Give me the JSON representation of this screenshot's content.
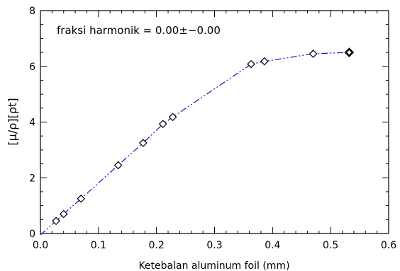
{
  "chart_data": {
    "type": "line",
    "xlabel": "Ketebalan aluminum foil (mm)",
    "ylabel": "[μ/ρ][ρt]",
    "annotation": "fraksi harmonik = 0.00±−0.00",
    "xlim": [
      0.0,
      0.6
    ],
    "ylim": [
      0,
      8
    ],
    "xticks": [
      "0.0",
      "0.1",
      "0.2",
      "0.3",
      "0.4",
      "0.5",
      "0.6"
    ],
    "yticks": [
      "0",
      "2",
      "4",
      "6",
      "8"
    ],
    "grid": false,
    "marker": "diamond",
    "line_style": "dash-dot-dot",
    "line_color": "#2020d0",
    "marker_color": "#000000",
    "series": [
      {
        "x": [
          0.027,
          0.04,
          0.07,
          0.134,
          0.177,
          0.211,
          0.228,
          0.363,
          0.386,
          0.47,
          0.532
        ],
        "y": [
          0.45,
          0.7,
          1.25,
          2.45,
          3.25,
          3.93,
          4.18,
          6.08,
          6.18,
          6.45,
          6.5
        ]
      }
    ],
    "fit_line": {
      "x": [
        0.0,
        0.027,
        0.04,
        0.07,
        0.134,
        0.177,
        0.211,
        0.228,
        0.363,
        0.386,
        0.47,
        0.532
      ],
      "y": [
        -0.05,
        0.45,
        0.7,
        1.25,
        2.45,
        3.25,
        3.93,
        4.18,
        6.08,
        6.18,
        6.45,
        6.5
      ]
    }
  }
}
